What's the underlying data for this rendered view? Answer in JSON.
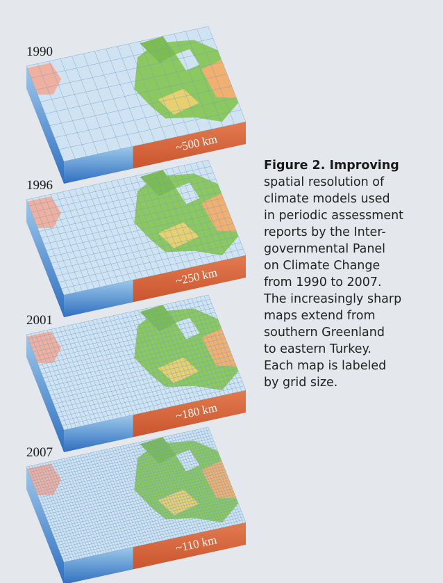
{
  "panels": [
    {
      "year": "1990",
      "resolution": "~500 km"
    },
    {
      "year": "1996",
      "resolution": "~250 km"
    },
    {
      "year": "2001",
      "resolution": "~180 km"
    },
    {
      "year": "2007",
      "resolution": "~110 km"
    }
  ],
  "caption": {
    "label": "Figure 2. Improving",
    "lines": [
      "spatial resolution of",
      "climate models used",
      "in periodic assessment",
      "reports by the Inter-",
      "governmental Panel",
      "on Climate Change",
      "from 1990 to 2007.",
      "The increasingly sharp",
      "maps extend from",
      "southern Greenland",
      "to eastern Turkey.",
      "Each map is labeled",
      "by grid size."
    ]
  }
}
